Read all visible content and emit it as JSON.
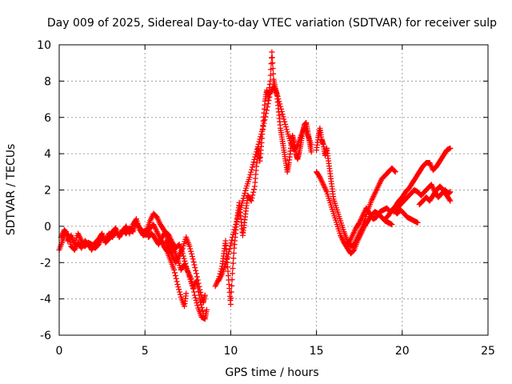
{
  "chart_data": {
    "type": "scatter",
    "title": "Day 009 of 2025, Sidereal Day-to-day VTEC variation (SDTVAR) for receiver sulp",
    "xlabel": "GPS time / hours",
    "ylabel": "SDTVAR / TECUs",
    "xlim": [
      0,
      25
    ],
    "ylim": [
      -6,
      10
    ],
    "xticks": [
      "0",
      "5",
      "10",
      "15",
      "20",
      "25"
    ],
    "yticks": [
      "-6",
      "-4",
      "-2",
      "0",
      "2",
      "4",
      "6",
      "8",
      "10"
    ],
    "grid": true,
    "marker": "plus",
    "color": "#ff0000",
    "series": [
      {
        "points": [
          [
            0.0,
            -1.3
          ],
          [
            0.2,
            -0.8
          ],
          [
            0.4,
            -0.3
          ],
          [
            0.5,
            -0.8
          ],
          [
            0.7,
            -0.5
          ],
          [
            0.9,
            -1.0
          ],
          [
            1.1,
            -0.4
          ],
          [
            1.3,
            -0.8
          ],
          [
            1.5,
            -1.1
          ],
          [
            1.7,
            -0.9
          ],
          [
            1.9,
            -1.0
          ],
          [
            2.1,
            -1.2
          ],
          [
            2.3,
            -1.0
          ],
          [
            2.5,
            -0.6
          ],
          [
            2.7,
            -0.8
          ],
          [
            2.9,
            -0.4
          ],
          [
            3.1,
            -0.6
          ],
          [
            3.3,
            -0.3
          ],
          [
            3.5,
            -0.5
          ],
          [
            3.7,
            -0.2
          ],
          [
            3.9,
            -0.4
          ],
          [
            4.1,
            -0.1
          ],
          [
            4.3,
            -0.3
          ],
          [
            4.5,
            0.2
          ],
          [
            4.7,
            -0.1
          ],
          [
            4.9,
            -0.3
          ],
          [
            5.1,
            -0.2
          ],
          [
            5.3,
            0.3
          ],
          [
            5.5,
            0.7
          ],
          [
            5.7,
            0.5
          ],
          [
            5.9,
            0.1
          ],
          [
            6.1,
            -0.2
          ],
          [
            6.3,
            -0.6
          ],
          [
            6.5,
            -1.0
          ],
          [
            6.7,
            -1.3
          ],
          [
            6.9,
            -1.8
          ],
          [
            7.1,
            -2.4
          ],
          [
            7.3,
            -2.1
          ],
          [
            7.5,
            -2.5
          ],
          [
            7.7,
            -2.9
          ],
          [
            7.9,
            -3.8
          ],
          [
            8.1,
            -4.5
          ],
          [
            8.3,
            -5.0
          ],
          [
            8.5,
            -5.1
          ],
          [
            8.6,
            -4.6
          ]
        ]
      },
      {
        "points": [
          [
            0.1,
            -0.6
          ],
          [
            0.3,
            -0.2
          ],
          [
            0.5,
            -0.5
          ],
          [
            0.7,
            -1.1
          ],
          [
            0.9,
            -1.3
          ],
          [
            1.1,
            -0.9
          ],
          [
            1.3,
            -1.2
          ],
          [
            1.5,
            -0.8
          ],
          [
            1.7,
            -1.0
          ],
          [
            1.9,
            -1.3
          ],
          [
            2.1,
            -0.9
          ],
          [
            2.3,
            -0.7
          ],
          [
            2.5,
            -0.4
          ],
          [
            2.7,
            -0.9
          ],
          [
            2.9,
            -0.7
          ],
          [
            3.1,
            -0.3
          ],
          [
            3.3,
            -0.1
          ],
          [
            3.5,
            -0.6
          ],
          [
            3.7,
            -0.3
          ],
          [
            3.9,
            0.0
          ],
          [
            4.1,
            -0.4
          ],
          [
            4.3,
            0.1
          ],
          [
            4.5,
            0.4
          ],
          [
            4.7,
            -0.2
          ],
          [
            4.9,
            -0.5
          ],
          [
            5.1,
            -0.4
          ],
          [
            5.3,
            -0.1
          ],
          [
            5.5,
            0.1
          ],
          [
            5.7,
            -0.3
          ],
          [
            5.9,
            -0.7
          ],
          [
            6.1,
            -1.1
          ],
          [
            6.3,
            -1.4
          ],
          [
            6.5,
            -1.9
          ],
          [
            6.7,
            -2.4
          ],
          [
            6.9,
            -3.2
          ],
          [
            7.1,
            -3.9
          ],
          [
            7.3,
            -4.4
          ],
          [
            7.4,
            -3.7
          ]
        ]
      },
      {
        "points": [
          [
            6.2,
            -0.8
          ],
          [
            6.4,
            -1.2
          ],
          [
            6.6,
            -1.6
          ],
          [
            6.8,
            -2.0
          ],
          [
            7.0,
            -1.6
          ],
          [
            7.2,
            -1.2
          ],
          [
            7.4,
            -0.6
          ],
          [
            7.6,
            -1.1
          ],
          [
            7.8,
            -1.8
          ],
          [
            8.0,
            -2.6
          ],
          [
            8.2,
            -3.5
          ],
          [
            8.4,
            -4.2
          ],
          [
            8.5,
            -3.8
          ]
        ]
      },
      {
        "points": [
          [
            9.1,
            -3.3
          ],
          [
            9.3,
            -2.9
          ],
          [
            9.5,
            -2.2
          ],
          [
            9.6,
            -1.5
          ],
          [
            9.7,
            -0.8
          ],
          [
            9.8,
            -2.0
          ],
          [
            9.9,
            -3.2
          ],
          [
            10.0,
            -4.3
          ],
          [
            10.1,
            -2.6
          ],
          [
            10.2,
            -1.2
          ],
          [
            10.3,
            -0.2
          ],
          [
            10.4,
            0.6
          ],
          [
            10.5,
            1.3
          ],
          [
            10.6,
            0.4
          ],
          [
            10.7,
            -0.5
          ],
          [
            10.8,
            0.2
          ],
          [
            10.9,
            1.0
          ],
          [
            11.0,
            1.7
          ],
          [
            11.2,
            1.4
          ],
          [
            11.4,
            2.2
          ],
          [
            11.5,
            3.3
          ],
          [
            11.6,
            4.3
          ],
          [
            11.7,
            3.6
          ],
          [
            11.8,
            4.6
          ],
          [
            11.9,
            5.8
          ],
          [
            12.0,
            6.9
          ],
          [
            12.1,
            7.5
          ],
          [
            12.2,
            7.1
          ],
          [
            12.3,
            8.0
          ],
          [
            12.4,
            9.6
          ],
          [
            12.5,
            8.1
          ],
          [
            12.6,
            7.6
          ],
          [
            12.7,
            7.2
          ],
          [
            12.8,
            6.3
          ],
          [
            12.9,
            5.4
          ],
          [
            13.0,
            4.8
          ],
          [
            13.1,
            4.2
          ],
          [
            13.2,
            3.6
          ],
          [
            13.3,
            3.0
          ],
          [
            13.4,
            3.5
          ],
          [
            13.5,
            4.3
          ],
          [
            13.6,
            5.0
          ],
          [
            13.7,
            4.6
          ],
          [
            13.8,
            4.0
          ],
          [
            13.9,
            3.7
          ],
          [
            14.0,
            4.1
          ],
          [
            14.1,
            4.6
          ],
          [
            14.2,
            5.2
          ],
          [
            14.3,
            5.6
          ],
          [
            14.4,
            5.7
          ],
          [
            14.5,
            5.2
          ],
          [
            14.6,
            4.6
          ],
          [
            14.7,
            4.1
          ]
        ]
      },
      {
        "points": [
          [
            9.3,
            -3.0
          ],
          [
            9.5,
            -2.6
          ],
          [
            9.7,
            -2.1
          ],
          [
            9.9,
            -1.4
          ],
          [
            10.1,
            -0.6
          ],
          [
            10.3,
            0.1
          ],
          [
            10.5,
            0.8
          ],
          [
            10.7,
            1.4
          ],
          [
            10.9,
            2.1
          ],
          [
            11.1,
            2.7
          ],
          [
            11.3,
            3.4
          ],
          [
            11.5,
            4.1
          ],
          [
            11.7,
            4.8
          ],
          [
            11.9,
            5.5
          ],
          [
            12.1,
            6.4
          ],
          [
            12.3,
            7.3
          ],
          [
            12.5,
            7.7
          ],
          [
            12.7,
            7.3
          ],
          [
            12.9,
            6.6
          ],
          [
            13.1,
            5.9
          ],
          [
            13.3,
            5.2
          ],
          [
            13.5,
            4.6
          ],
          [
            13.7,
            4.2
          ],
          [
            13.9,
            4.5
          ],
          [
            14.1,
            5.0
          ],
          [
            14.3,
            5.4
          ],
          [
            14.5,
            5.0
          ],
          [
            14.7,
            4.5
          ]
        ]
      },
      {
        "points": [
          [
            15.0,
            4.2
          ],
          [
            15.1,
            4.9
          ],
          [
            15.2,
            5.4
          ],
          [
            15.3,
            4.8
          ],
          [
            15.4,
            4.5
          ],
          [
            15.5,
            3.9
          ],
          [
            15.6,
            4.3
          ],
          [
            15.7,
            3.6
          ],
          [
            15.8,
            2.9
          ],
          [
            15.9,
            2.2
          ],
          [
            16.0,
            1.5
          ],
          [
            16.2,
            0.9
          ],
          [
            16.4,
            0.3
          ],
          [
            16.6,
            -0.3
          ],
          [
            16.8,
            -0.8
          ],
          [
            17.0,
            -1.1
          ],
          [
            17.2,
            -1.0
          ],
          [
            17.4,
            -0.6
          ],
          [
            17.6,
            -0.2
          ],
          [
            17.8,
            0.3
          ],
          [
            18.0,
            0.9
          ],
          [
            18.2,
            1.4
          ],
          [
            18.4,
            1.8
          ],
          [
            18.6,
            2.2
          ],
          [
            18.8,
            2.6
          ],
          [
            19.0,
            2.8
          ],
          [
            19.2,
            3.0
          ],
          [
            19.4,
            3.2
          ],
          [
            19.6,
            3.0
          ]
        ]
      },
      {
        "points": [
          [
            15.0,
            3.0
          ],
          [
            15.2,
            2.7
          ],
          [
            15.4,
            2.3
          ],
          [
            15.6,
            1.9
          ],
          [
            15.8,
            1.3
          ],
          [
            16.0,
            0.7
          ],
          [
            16.2,
            0.1
          ],
          [
            16.4,
            -0.5
          ],
          [
            16.6,
            -0.9
          ],
          [
            16.8,
            -1.2
          ],
          [
            17.0,
            -1.5
          ],
          [
            17.2,
            -1.3
          ],
          [
            17.4,
            -0.8
          ],
          [
            17.6,
            -0.4
          ],
          [
            17.8,
            0.0
          ],
          [
            18.0,
            0.3
          ],
          [
            18.2,
            0.6
          ],
          [
            18.4,
            0.8
          ],
          [
            18.6,
            0.7
          ],
          [
            18.8,
            0.5
          ],
          [
            19.0,
            0.3
          ],
          [
            19.2,
            0.2
          ],
          [
            19.4,
            0.1
          ]
        ]
      },
      {
        "points": [
          [
            16.9,
            -0.9
          ],
          [
            17.1,
            -0.5
          ],
          [
            17.3,
            -0.1
          ],
          [
            17.5,
            0.2
          ],
          [
            17.7,
            0.6
          ],
          [
            17.9,
            1.0
          ],
          [
            18.1,
            0.7
          ],
          [
            18.3,
            0.4
          ],
          [
            18.5,
            0.5
          ],
          [
            18.7,
            0.8
          ],
          [
            18.9,
            0.9
          ],
          [
            19.1,
            1.0
          ],
          [
            19.3,
            0.8
          ],
          [
            19.5,
            0.9
          ],
          [
            19.7,
            0.7
          ],
          [
            19.9,
            0.9
          ],
          [
            20.1,
            0.7
          ],
          [
            20.3,
            0.5
          ],
          [
            20.5,
            0.4
          ],
          [
            20.7,
            0.3
          ],
          [
            20.9,
            0.2
          ]
        ]
      },
      {
        "points": [
          [
            19.0,
            0.4
          ],
          [
            19.2,
            0.6
          ],
          [
            19.4,
            0.9
          ],
          [
            19.6,
            1.1
          ],
          [
            19.8,
            1.4
          ],
          [
            20.0,
            1.6
          ],
          [
            20.2,
            1.9
          ],
          [
            20.4,
            2.1
          ],
          [
            20.6,
            2.4
          ],
          [
            20.8,
            2.7
          ],
          [
            21.0,
            3.0
          ],
          [
            21.2,
            3.3
          ],
          [
            21.4,
            3.5
          ],
          [
            21.6,
            3.5
          ],
          [
            21.8,
            3.1
          ],
          [
            22.0,
            3.3
          ],
          [
            22.2,
            3.6
          ],
          [
            22.4,
            3.9
          ],
          [
            22.6,
            4.2
          ],
          [
            22.8,
            4.3
          ]
        ]
      },
      {
        "points": [
          [
            19.5,
            0.8
          ],
          [
            19.7,
            1.0
          ],
          [
            19.9,
            1.2
          ],
          [
            20.1,
            1.4
          ],
          [
            20.3,
            1.6
          ],
          [
            20.5,
            1.8
          ],
          [
            20.7,
            2.0
          ],
          [
            20.9,
            1.9
          ],
          [
            21.1,
            1.7
          ],
          [
            21.3,
            1.9
          ],
          [
            21.5,
            2.1
          ],
          [
            21.7,
            2.3
          ],
          [
            21.9,
            1.9
          ],
          [
            22.1,
            1.6
          ],
          [
            22.3,
            1.8
          ],
          [
            22.5,
            2.0
          ],
          [
            22.7,
            1.8
          ],
          [
            22.8,
            1.9
          ]
        ]
      },
      {
        "points": [
          [
            21.0,
            1.2
          ],
          [
            21.2,
            1.4
          ],
          [
            21.4,
            1.6
          ],
          [
            21.6,
            1.4
          ],
          [
            21.8,
            1.7
          ],
          [
            22.0,
            2.0
          ],
          [
            22.2,
            2.2
          ],
          [
            22.4,
            2.0
          ],
          [
            22.6,
            1.7
          ],
          [
            22.8,
            1.4
          ]
        ]
      },
      {
        "points": [
          [
            5.2,
            -0.6
          ],
          [
            5.4,
            -0.4
          ],
          [
            5.6,
            -0.7
          ],
          [
            5.8,
            -1.0
          ],
          [
            6.0,
            -0.6
          ],
          [
            6.2,
            -0.3
          ],
          [
            6.4,
            -0.5
          ],
          [
            6.6,
            -0.9
          ],
          [
            6.8,
            -1.2
          ],
          [
            7.0,
            -1.0
          ],
          [
            7.2,
            -1.5
          ],
          [
            7.4,
            -2.2
          ],
          [
            7.6,
            -2.8
          ],
          [
            7.8,
            -3.4
          ],
          [
            8.0,
            -3.0
          ],
          [
            8.2,
            -4.0
          ],
          [
            8.4,
            -4.8
          ]
        ]
      }
    ]
  }
}
